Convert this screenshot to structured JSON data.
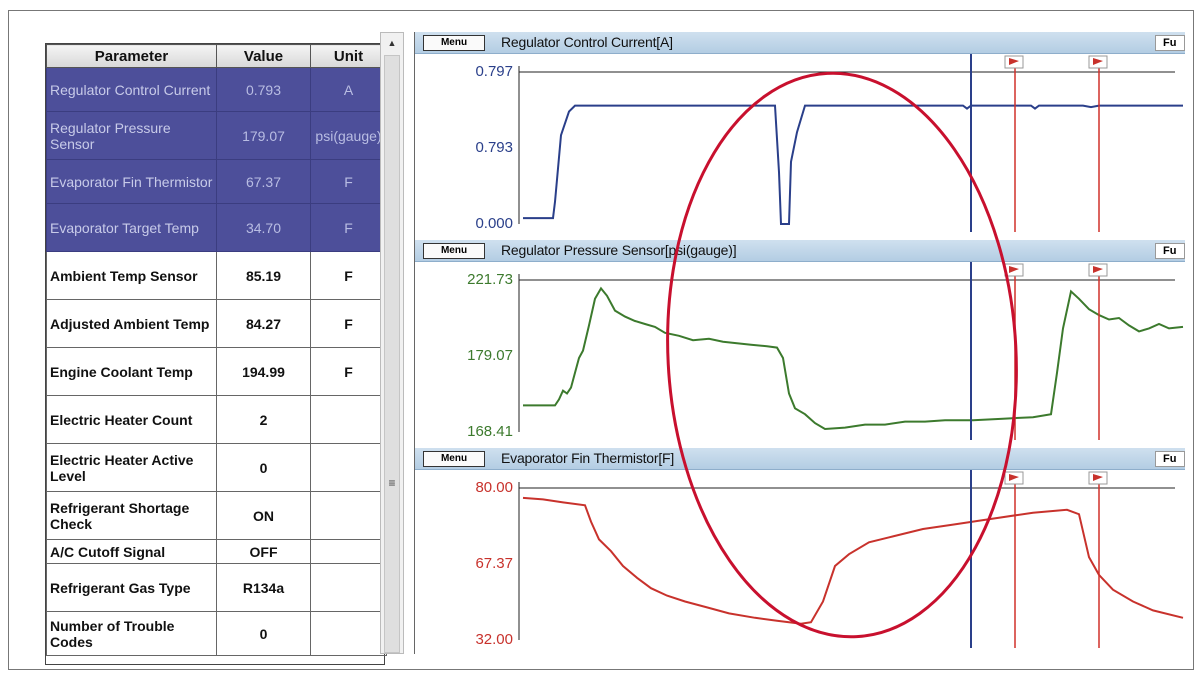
{
  "table": {
    "headers": {
      "parameter": "Parameter",
      "value": "Value",
      "unit": "Unit"
    },
    "rows": [
      {
        "name": "Regulator Control Current",
        "value": "0.793",
        "unit": "A",
        "selected": true
      },
      {
        "name": "Regulator Pressure Sensor",
        "value": "179.07",
        "unit": "psi(gauge)",
        "selected": true
      },
      {
        "name": "Evaporator Fin Thermistor",
        "value": "67.37",
        "unit": "F",
        "selected": true
      },
      {
        "name": "Evaporator Target Temp",
        "value": "34.70",
        "unit": "F",
        "selected": true
      },
      {
        "name": "Ambient Temp Sensor",
        "value": "85.19",
        "unit": "F",
        "selected": false
      },
      {
        "name": "Adjusted Ambient Temp",
        "value": "84.27",
        "unit": "F",
        "selected": false
      },
      {
        "name": "Engine Coolant Temp",
        "value": "194.99",
        "unit": "F",
        "selected": false
      },
      {
        "name": "Electric Heater Count",
        "value": "2",
        "unit": "",
        "selected": false
      },
      {
        "name": "Electric Heater Active Level",
        "value": "0",
        "unit": "",
        "selected": false
      },
      {
        "name": "Refrigerant Shortage Check",
        "value": "ON",
        "unit": "",
        "selected": false
      },
      {
        "name": "A/C Cutoff Signal",
        "value": "OFF",
        "unit": "",
        "selected": false
      },
      {
        "name": "Refrigerant Gas Type",
        "value": "R134a",
        "unit": "",
        "selected": false
      },
      {
        "name": "Number of Trouble Codes",
        "value": "0",
        "unit": "",
        "selected": false
      }
    ]
  },
  "scrollbar": {
    "up_arrow": "▲",
    "grip": "≡"
  },
  "charts": [
    {
      "menu_label": "Menu",
      "title": "Regulator Control Current[A]",
      "full_label": "Fu",
      "color": "#2a3f8a",
      "y_ticks": [
        "0.797",
        "0.793",
        "0.000"
      ],
      "y_range": [
        0.0,
        0.797
      ],
      "points": [
        [
          0,
          0.04
        ],
        [
          30,
          0.04
        ],
        [
          32,
          0.15
        ],
        [
          38,
          0.6
        ],
        [
          46,
          0.76
        ],
        [
          52,
          0.8
        ],
        [
          252,
          0.8
        ],
        [
          256,
          0.35
        ],
        [
          258,
          0.0
        ],
        [
          266,
          0.0
        ],
        [
          268,
          0.42
        ],
        [
          274,
          0.62
        ],
        [
          282,
          0.8
        ],
        [
          440,
          0.8
        ],
        [
          444,
          0.78
        ],
        [
          448,
          0.8
        ],
        [
          508,
          0.8
        ],
        [
          512,
          0.78
        ],
        [
          516,
          0.8
        ],
        [
          560,
          0.8
        ],
        [
          568,
          0.79
        ],
        [
          576,
          0.8
        ],
        [
          660,
          0.8
        ]
      ]
    },
    {
      "menu_label": "Menu",
      "title": "Regulator Pressure Sensor[psi(gauge)]",
      "full_label": "Fu",
      "color": "#3c7a2d",
      "y_ticks": [
        "221.73",
        "179.07",
        "168.41"
      ],
      "y_range": [
        168.41,
        221.73
      ],
      "points": [
        [
          0,
          0.18
        ],
        [
          32,
          0.18
        ],
        [
          36,
          0.22
        ],
        [
          40,
          0.28
        ],
        [
          44,
          0.26
        ],
        [
          48,
          0.3
        ],
        [
          52,
          0.4
        ],
        [
          56,
          0.5
        ],
        [
          60,
          0.55
        ],
        [
          66,
          0.72
        ],
        [
          72,
          0.9
        ],
        [
          78,
          0.97
        ],
        [
          84,
          0.92
        ],
        [
          92,
          0.82
        ],
        [
          102,
          0.78
        ],
        [
          112,
          0.75
        ],
        [
          122,
          0.73
        ],
        [
          132,
          0.71
        ],
        [
          142,
          0.67
        ],
        [
          156,
          0.65
        ],
        [
          170,
          0.62
        ],
        [
          186,
          0.63
        ],
        [
          200,
          0.61
        ],
        [
          214,
          0.6
        ],
        [
          228,
          0.59
        ],
        [
          244,
          0.58
        ],
        [
          254,
          0.57
        ],
        [
          260,
          0.5
        ],
        [
          266,
          0.26
        ],
        [
          272,
          0.16
        ],
        [
          282,
          0.12
        ],
        [
          292,
          0.06
        ],
        [
          302,
          0.02
        ],
        [
          322,
          0.03
        ],
        [
          342,
          0.05
        ],
        [
          362,
          0.05
        ],
        [
          382,
          0.07
        ],
        [
          402,
          0.07
        ],
        [
          422,
          0.08
        ],
        [
          450,
          0.08
        ],
        [
          480,
          0.09
        ],
        [
          510,
          0.1
        ],
        [
          528,
          0.12
        ],
        [
          534,
          0.4
        ],
        [
          540,
          0.7
        ],
        [
          548,
          0.95
        ],
        [
          556,
          0.9
        ],
        [
          566,
          0.83
        ],
        [
          576,
          0.79
        ],
        [
          586,
          0.76
        ],
        [
          596,
          0.77
        ],
        [
          606,
          0.72
        ],
        [
          616,
          0.68
        ],
        [
          626,
          0.7
        ],
        [
          636,
          0.73
        ],
        [
          646,
          0.7
        ],
        [
          660,
          0.71
        ]
      ]
    },
    {
      "menu_label": "Menu",
      "title": "Evaporator Fin Thermistor[F]",
      "full_label": "Fu",
      "color": "#c8322c",
      "y_ticks": [
        "80.00",
        "67.37",
        "32.00"
      ],
      "y_range": [
        32.0,
        80.0
      ],
      "points": [
        [
          0,
          0.96
        ],
        [
          20,
          0.95
        ],
        [
          40,
          0.93
        ],
        [
          62,
          0.91
        ],
        [
          68,
          0.8
        ],
        [
          76,
          0.68
        ],
        [
          88,
          0.6
        ],
        [
          100,
          0.5
        ],
        [
          114,
          0.42
        ],
        [
          128,
          0.35
        ],
        [
          144,
          0.3
        ],
        [
          162,
          0.26
        ],
        [
          184,
          0.22
        ],
        [
          206,
          0.18
        ],
        [
          232,
          0.15
        ],
        [
          254,
          0.13
        ],
        [
          278,
          0.11
        ],
        [
          288,
          0.12
        ],
        [
          300,
          0.26
        ],
        [
          312,
          0.5
        ],
        [
          326,
          0.58
        ],
        [
          346,
          0.66
        ],
        [
          370,
          0.7
        ],
        [
          400,
          0.75
        ],
        [
          430,
          0.78
        ],
        [
          470,
          0.82
        ],
        [
          510,
          0.86
        ],
        [
          544,
          0.88
        ],
        [
          556,
          0.85
        ],
        [
          566,
          0.56
        ],
        [
          576,
          0.44
        ],
        [
          590,
          0.34
        ],
        [
          610,
          0.26
        ],
        [
          630,
          0.2
        ],
        [
          660,
          0.15
        ]
      ]
    }
  ]
}
